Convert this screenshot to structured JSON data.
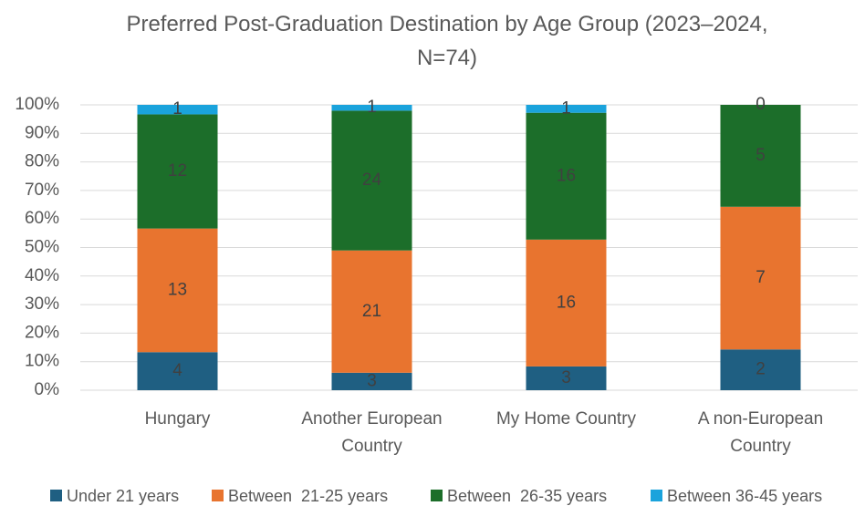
{
  "chart_data": {
    "type": "bar",
    "stacking": "percent",
    "title": "Preferred Post-Graduation Destination by Age Group (2023–2024, N=74)",
    "categories": [
      "Hungary",
      "Another European Country",
      "My Home Country",
      "A non-European Country"
    ],
    "series": [
      {
        "name": "Under 21 years",
        "color": "#1f5f82",
        "values": [
          4,
          3,
          3,
          2
        ]
      },
      {
        "name": "Between  21-25 years",
        "color": "#e8742f",
        "values": [
          13,
          21,
          16,
          7
        ]
      },
      {
        "name": "Between  26-35 years",
        "color": "#1c6e2a",
        "values": [
          12,
          24,
          16,
          5
        ]
      },
      {
        "name": "Between 36-45 years",
        "color": "#1aa3dc",
        "values": [
          1,
          1,
          1,
          0
        ]
      }
    ],
    "ylim": [
      0,
      100
    ],
    "yticks": [
      {
        "value": 0,
        "label": "0%"
      },
      {
        "value": 10,
        "label": "10%"
      },
      {
        "value": 20,
        "label": "20%"
      },
      {
        "value": 30,
        "label": "30%"
      },
      {
        "value": 40,
        "label": "40%"
      },
      {
        "value": 50,
        "label": "50%"
      },
      {
        "value": 60,
        "label": "60%"
      },
      {
        "value": 70,
        "label": "70%"
      },
      {
        "value": 80,
        "label": "80%"
      },
      {
        "value": 90,
        "label": "90%"
      },
      {
        "value": 100,
        "label": "100%"
      }
    ],
    "grid": true,
    "legend": "bottom"
  }
}
